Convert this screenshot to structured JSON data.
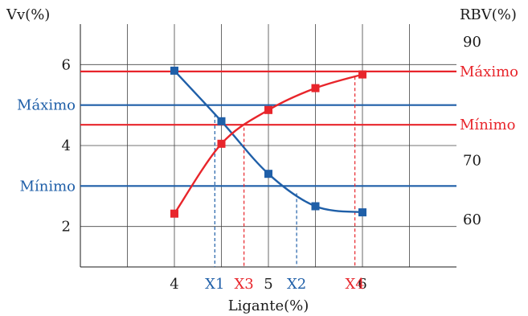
{
  "chart_data": {
    "type": "line",
    "xlabel": "Ligante(%)",
    "ylabel_left": "Vv(%)",
    "ylabel_right": "RBV(%)",
    "xlim": [
      3,
      7
    ],
    "ylim_left": [
      1,
      7
    ],
    "ylim_right": [
      52,
      93
    ],
    "x_ticks": [
      4,
      5,
      6
    ],
    "y_left_ticks": [
      2,
      4,
      6
    ],
    "y_right_ticks": [
      60,
      70,
      90
    ],
    "grid": true,
    "series": [
      {
        "axis": "left",
        "color": "#1f5fa8",
        "x": [
          4,
          4.5,
          5,
          5.5,
          6
        ],
        "y": [
          5.85,
          4.6,
          3.3,
          2.5,
          2.35
        ]
      },
      {
        "axis": "right",
        "color": "#e8252b",
        "x": [
          4,
          4.5,
          5,
          5.5,
          6
        ],
        "y": [
          61,
          72.8,
          78.5,
          82.2,
          84.5
        ]
      }
    ],
    "reference_lines": [
      {
        "axis": "left",
        "label": "Máximo",
        "value": 5.0,
        "color": "#1f5fa8"
      },
      {
        "axis": "left",
        "label": "Mínimo",
        "value": 3.0,
        "color": "#1f5fa8"
      },
      {
        "axis": "right",
        "label": "Máximo",
        "value": 85,
        "color": "#e8252b"
      },
      {
        "axis": "right",
        "label": "Mínimo",
        "value": 76,
        "color": "#e8252b"
      }
    ],
    "markers": [
      {
        "label": "X1",
        "x": 4.43,
        "color": "#1f5fa8"
      },
      {
        "label": "X3",
        "x": 4.74,
        "color": "#e8252b"
      },
      {
        "label": "X2",
        "x": 5.3,
        "color": "#1f5fa8"
      },
      {
        "label": "X4",
        "x": 5.92,
        "color": "#e8252b"
      }
    ]
  }
}
